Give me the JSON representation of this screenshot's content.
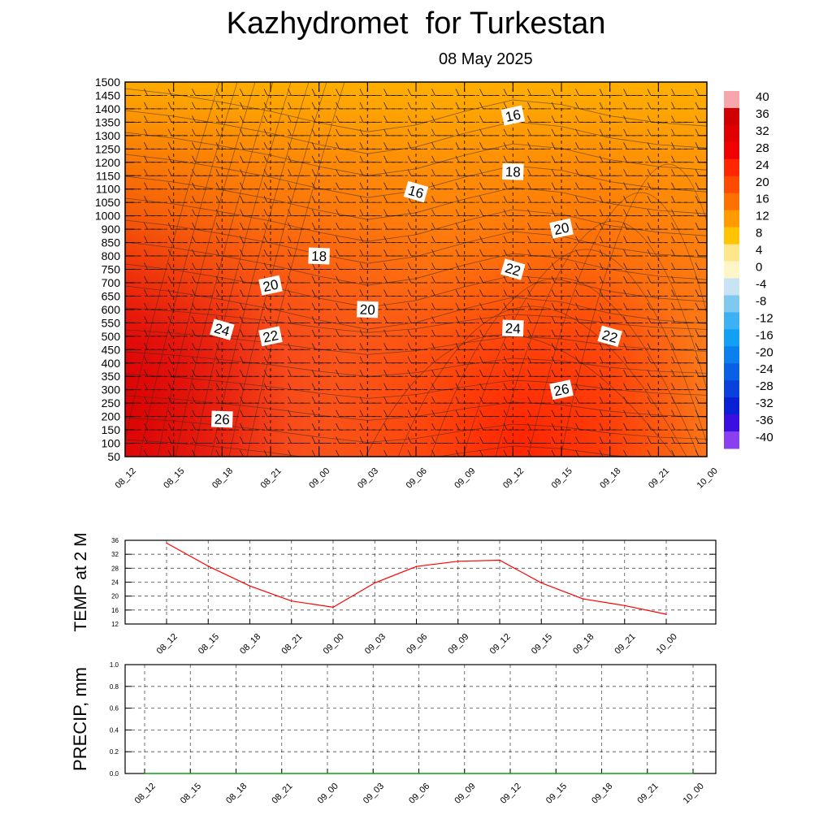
{
  "header": {
    "title": "Kazhydromet  for Turkestan",
    "date": "08 May 2025"
  },
  "chart_data": [
    {
      "type": "heatmap",
      "name": "cross-section",
      "x": [
        "08_12",
        "08_15",
        "08_18",
        "08_21",
        "09_00",
        "09_03",
        "09_06",
        "09_09",
        "09_12",
        "09_15",
        "09_18",
        "09_21",
        "10_00"
      ],
      "y": [
        50,
        100,
        150,
        200,
        250,
        300,
        350,
        400,
        450,
        500,
        550,
        600,
        650,
        700,
        750,
        800,
        850,
        900,
        1000,
        1050,
        1100,
        1150,
        1200,
        1250,
        1300,
        1350,
        1400,
        1450,
        1500
      ],
      "ylim": [
        50,
        1500
      ],
      "colorbar": {
        "ticks": [
          40,
          36,
          32,
          28,
          24,
          20,
          16,
          12,
          8,
          4,
          0,
          -4,
          -8,
          -12,
          -16,
          -20,
          -24,
          -28,
          -32,
          -36,
          -40
        ]
      },
      "grid": true,
      "contour_labels": [
        {
          "value": "16",
          "x": "09_12",
          "y": 1375
        },
        {
          "value": "18",
          "x": "09_12",
          "y": 1165
        },
        {
          "value": "16",
          "x": "09_06",
          "y": 1090
        },
        {
          "value": "20",
          "x": "09_15",
          "y": 905
        },
        {
          "value": "18",
          "x": "09_00",
          "y": 800
        },
        {
          "value": "22",
          "x": "09_12",
          "y": 750
        },
        {
          "value": "20",
          "x": "08_21",
          "y": 690
        },
        {
          "value": "20",
          "x": "09_03",
          "y": 600
        },
        {
          "value": "24",
          "x": "08_18",
          "y": 525
        },
        {
          "value": "22",
          "x": "08_21",
          "y": 500
        },
        {
          "value": "24",
          "x": "09_12",
          "y": 530
        },
        {
          "value": "22",
          "x": "09_18",
          "y": 500
        },
        {
          "value": "26",
          "x": "09_15",
          "y": 300
        },
        {
          "value": "26",
          "x": "08_18",
          "y": 190
        }
      ]
    },
    {
      "type": "line",
      "name": "temperature",
      "ylabel": "TEMP at 2 M",
      "categories": [
        "08_12",
        "08_15",
        "08_18",
        "08_21",
        "09_00",
        "09_03",
        "09_06",
        "09_09",
        "09_12",
        "09_15",
        "09_18",
        "09_21",
        "10_00"
      ],
      "values": [
        35.2,
        28.6,
        22.9,
        18.6,
        16.8,
        23.8,
        28.5,
        30.0,
        30.3,
        23.8,
        19.2,
        17.3,
        14.8
      ],
      "ylim": [
        12,
        36
      ],
      "yticks": [
        "12",
        "16",
        "20",
        "24",
        "28",
        "32",
        "36"
      ],
      "color": "#ff0000",
      "grid": true
    },
    {
      "type": "line",
      "name": "precipitation",
      "ylabel": "PRECIP, mm",
      "categories": [
        "08_12",
        "08_15",
        "08_18",
        "08_21",
        "09_00",
        "09_03",
        "09_06",
        "09_09",
        "09_12",
        "09_15",
        "09_18",
        "09_21",
        "10_00"
      ],
      "values": [
        0,
        0,
        0,
        0,
        0,
        0,
        0,
        0,
        0,
        0,
        0,
        0,
        0
      ],
      "ylim": [
        0,
        1
      ],
      "yticks": [
        "0.0",
        "0.2",
        "0.4",
        "0.6",
        "0.8",
        "1.0"
      ],
      "color": "#00aa00",
      "grid": true
    }
  ]
}
